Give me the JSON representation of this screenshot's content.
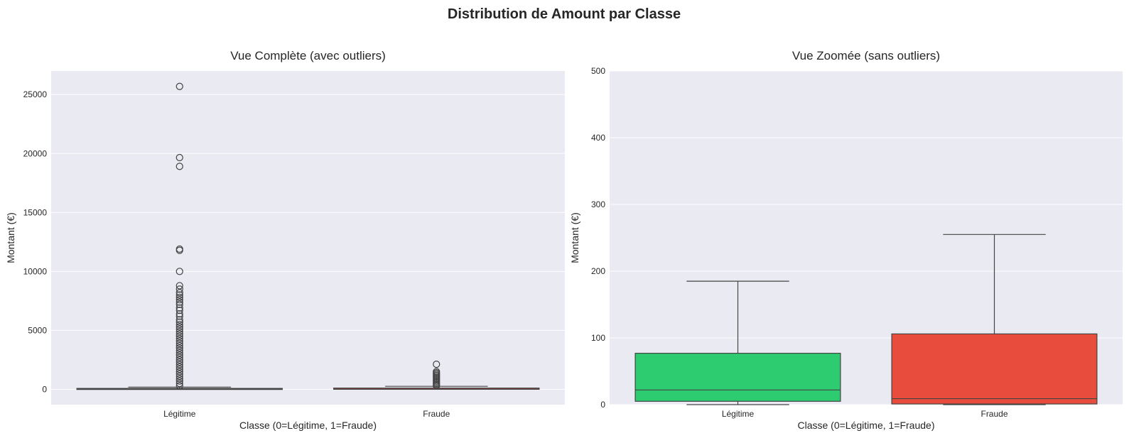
{
  "suptitle": "Distribution de Amount par Classe",
  "colors": {
    "plot_bg": "#eaeaf2",
    "grid": "#ffffff",
    "legitime": "#2ecc71",
    "fraude": "#e74c3c",
    "line": "#444444"
  },
  "chart_data": [
    {
      "type": "box",
      "title": "Vue Complète (avec outliers)",
      "xlabel": "Classe (0=Légitime, 1=Fraude)",
      "ylabel": "Montant (€)",
      "ylim": [
        -1300,
        27000
      ],
      "yticks": [
        0,
        5000,
        10000,
        15000,
        20000,
        25000
      ],
      "grid": true,
      "categories": [
        "Légitime",
        "Fraude"
      ],
      "boxes": [
        {
          "name": "Légitime",
          "q1": 5,
          "median": 22,
          "q3": 77,
          "whisker_low": 0,
          "whisker_high": 185,
          "outliers": [
            25691,
            19656,
            18910,
            11898,
            11789,
            10000,
            8790,
            8500,
            8200,
            8000,
            7800,
            7600,
            7400,
            7200,
            6900,
            6700,
            6400,
            6200,
            5900,
            5700,
            5500,
            5300,
            5100,
            4900,
            4700,
            4500,
            4300,
            4100,
            3900,
            3700,
            3500,
            3300,
            3100,
            2900,
            2700,
            2500,
            2300,
            2100,
            1900,
            1700,
            1500,
            1300,
            1100,
            900,
            700,
            500,
            300
          ]
        },
        {
          "name": "Fraude",
          "q1": 1,
          "median": 9,
          "q3": 106,
          "whisker_low": 0,
          "whisker_high": 255,
          "outliers": [
            2125,
            1504,
            1400,
            1300,
            1200,
            1100,
            1000,
            900,
            800,
            700,
            600,
            500,
            400,
            300
          ]
        }
      ]
    },
    {
      "type": "box",
      "title": "Vue Zoomée (sans outliers)",
      "xlabel": "Classe (0=Légitime, 1=Fraude)",
      "ylabel": "Montant (€)",
      "ylim": [
        0,
        500
      ],
      "yticks": [
        0,
        100,
        200,
        300,
        400,
        500
      ],
      "grid": true,
      "categories": [
        "Légitime",
        "Fraude"
      ],
      "boxes": [
        {
          "name": "Légitime",
          "q1": 5,
          "median": 22,
          "q3": 77,
          "whisker_low": 0,
          "whisker_high": 185,
          "outliers": []
        },
        {
          "name": "Fraude",
          "q1": 1,
          "median": 9,
          "q3": 106,
          "whisker_low": 0,
          "whisker_high": 255,
          "outliers": []
        }
      ]
    }
  ]
}
